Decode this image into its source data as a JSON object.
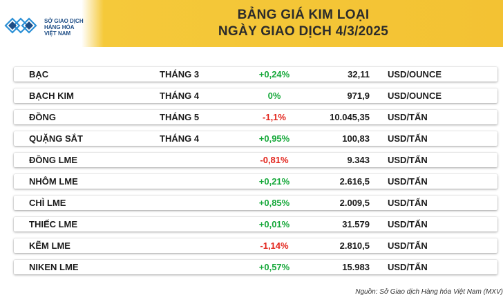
{
  "logo": {
    "line1": "SỞ GIAO DỊCH",
    "line2": "HÀNG HÓA",
    "line3": "VIỆT NAM"
  },
  "title": {
    "line1": "BẢNG GIÁ KIM LOẠI",
    "line2": "NGÀY GIAO DỊCH 4/3/2025"
  },
  "rows": [
    {
      "name": "BẠC",
      "month": "THÁNG 3",
      "change": "+0,24%",
      "trend": "up",
      "price": "32,11",
      "unit": "USD/OUNCE"
    },
    {
      "name": "BẠCH KIM",
      "month": "THÁNG 4",
      "change": "0%",
      "trend": "flat",
      "price": "971,9",
      "unit": "USD/OUNCE"
    },
    {
      "name": "ĐỒNG",
      "month": "THÁNG 5",
      "change": "-1,1%",
      "trend": "down",
      "price": "10.045,35",
      "unit": "USD/TẤN"
    },
    {
      "name": "QUẶNG SẮT",
      "month": "THÁNG 4",
      "change": "+0,95%",
      "trend": "up",
      "price": "100,83",
      "unit": "USD/TẤN"
    },
    {
      "name": "ĐỒNG LME",
      "month": "",
      "change": "-0,81%",
      "trend": "down",
      "price": "9.343",
      "unit": "USD/TẤN"
    },
    {
      "name": "NHÔM LME",
      "month": "",
      "change": "+0,21%",
      "trend": "up",
      "price": "2.616,5",
      "unit": "USD/TẤN"
    },
    {
      "name": "CHÌ LME",
      "month": "",
      "change": "+0,85%",
      "trend": "up",
      "price": "2.009,5",
      "unit": "USD/TẤN"
    },
    {
      "name": "THIẾC LME",
      "month": "",
      "change": "+0,01%",
      "trend": "up",
      "price": "31.579",
      "unit": "USD/TẤN"
    },
    {
      "name": "KẼM LME",
      "month": "",
      "change": "-1,14%",
      "trend": "down",
      "price": "2.810,5",
      "unit": "USD/TẤN"
    },
    {
      "name": "NIKEN LME",
      "month": "",
      "change": "+0,57%",
      "trend": "up",
      "price": "15.983",
      "unit": "USD/TẤN"
    }
  ],
  "source": "Nguồn: Sở Giao dịch Hàng hóa Việt Nam (MXV)",
  "colors": {
    "header": "#f3c233",
    "up": "#16a83a",
    "down": "#e2231a",
    "logo": "#1f4e86"
  }
}
